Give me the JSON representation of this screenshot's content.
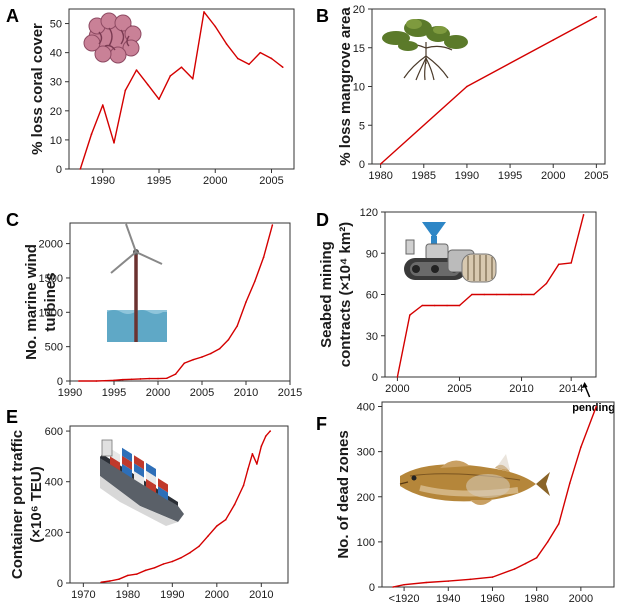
{
  "chart_data": [
    {
      "panel": "A",
      "type": "line",
      "ylabel": "% loss coral cover",
      "xlim": [
        1987,
        2007
      ],
      "ylim": [
        0,
        55
      ],
      "xticks": [
        "1990",
        "1995",
        "2000",
        "2005"
      ],
      "yticks": [
        "0",
        "10",
        "20",
        "30",
        "40",
        "50"
      ],
      "x": [
        1988,
        1989,
        1990,
        1991,
        1992,
        1993,
        1994,
        1995,
        1996,
        1997,
        1998,
        1999,
        2000,
        2001,
        2002,
        2003,
        2004,
        2005,
        2006
      ],
      "y": [
        0,
        12,
        22,
        9,
        27,
        34,
        29,
        24,
        32,
        35,
        31,
        54,
        49,
        43,
        38,
        36,
        40,
        38,
        35
      ],
      "color": "#d40000",
      "icon": "coral-icon"
    },
    {
      "panel": "B",
      "type": "line",
      "ylabel": "% loss mangrove area",
      "xlim": [
        1979,
        2006
      ],
      "ylim": [
        0,
        20
      ],
      "xticks": [
        "1980",
        "1985",
        "1990",
        "1995",
        "2000",
        "2005"
      ],
      "yticks": [
        "0",
        "5",
        "10",
        "15",
        "20"
      ],
      "x": [
        1980,
        1990,
        2000,
        2005
      ],
      "y": [
        0,
        10,
        16,
        19
      ],
      "color": "#d40000",
      "icon": "mangrove-icon"
    },
    {
      "panel": "C",
      "type": "line",
      "ylabel": [
        "No. marine wind",
        "turbines"
      ],
      "xlim": [
        1990,
        2015
      ],
      "ylim": [
        0,
        2300
      ],
      "xticks": [
        "1990",
        "1995",
        "2000",
        "2005",
        "2010",
        "2015"
      ],
      "yticks": [
        "0",
        "500",
        "1000",
        "1500",
        "2000"
      ],
      "x": [
        1991,
        1993,
        1994,
        1995,
        1996,
        1997,
        1998,
        1999,
        2000,
        2001,
        2002,
        2003,
        2004,
        2005,
        2006,
        2007,
        2008,
        2009,
        2010,
        2011,
        2012,
        2013
      ],
      "y": [
        0,
        0,
        5,
        10,
        20,
        25,
        30,
        35,
        35,
        40,
        100,
        260,
        310,
        350,
        400,
        470,
        600,
        800,
        1150,
        1450,
        1800,
        2270
      ],
      "color": "#d40000",
      "icon": "wind-turbine-icon"
    },
    {
      "panel": "D",
      "type": "line",
      "ylabel": [
        "Seabed mining",
        "contracts (×10⁴ km²)"
      ],
      "xlim": [
        1999,
        2016
      ],
      "ylim": [
        0,
        120
      ],
      "xticks": [
        "2000",
        "2005",
        "2010",
        "2014"
      ],
      "yticks": [
        "0",
        "30",
        "60",
        "90",
        "120"
      ],
      "x": [
        2000,
        2001,
        2002,
        2003,
        2004,
        2005,
        2006,
        2007,
        2008,
        2009,
        2010,
        2011,
        2012,
        2013,
        2014,
        2015
      ],
      "y": [
        0,
        45,
        52,
        52,
        52,
        52,
        60,
        60,
        60,
        60,
        60,
        60,
        68,
        82,
        83,
        118
      ],
      "annotation": "pending",
      "color": "#d40000",
      "icon": "seabed-miner-icon"
    },
    {
      "panel": "E",
      "type": "line",
      "ylabel": [
        "Container port traffic",
        "(×10⁶ TEU)"
      ],
      "xlim": [
        1967,
        2016
      ],
      "ylim": [
        0,
        620
      ],
      "xticks": [
        "1970",
        "1980",
        "1990",
        "2000",
        "2010"
      ],
      "yticks": [
        "0",
        "200",
        "400",
        "600"
      ],
      "x": [
        1974,
        1976,
        1978,
        1980,
        1982,
        1984,
        1986,
        1988,
        1990,
        1992,
        1994,
        1996,
        1998,
        2000,
        2002,
        2004,
        2006,
        2007,
        2008,
        2009,
        2010,
        2011,
        2012
      ],
      "y": [
        3,
        8,
        15,
        30,
        35,
        50,
        60,
        75,
        85,
        100,
        120,
        145,
        185,
        225,
        250,
        310,
        385,
        450,
        510,
        470,
        540,
        580,
        600
      ],
      "color": "#d40000",
      "icon": "container-ship-icon"
    },
    {
      "panel": "F",
      "type": "line",
      "ylabel": "No. of dead zones",
      "xlim": [
        1910,
        2015
      ],
      "ylim": [
        0,
        410
      ],
      "xticks": [
        "<1920",
        "1940",
        "1960",
        "1980",
        "2000"
      ],
      "yticks": [
        "0",
        "100",
        "200",
        "300",
        "400"
      ],
      "x": [
        1915,
        1920,
        1930,
        1940,
        1950,
        1960,
        1970,
        1975,
        1980,
        1985,
        1990,
        1995,
        2000,
        2007
      ],
      "y": [
        0,
        5,
        10,
        13,
        17,
        22,
        40,
        52,
        65,
        100,
        140,
        230,
        310,
        400
      ],
      "color": "#d40000",
      "icon": "fish-icon"
    }
  ]
}
